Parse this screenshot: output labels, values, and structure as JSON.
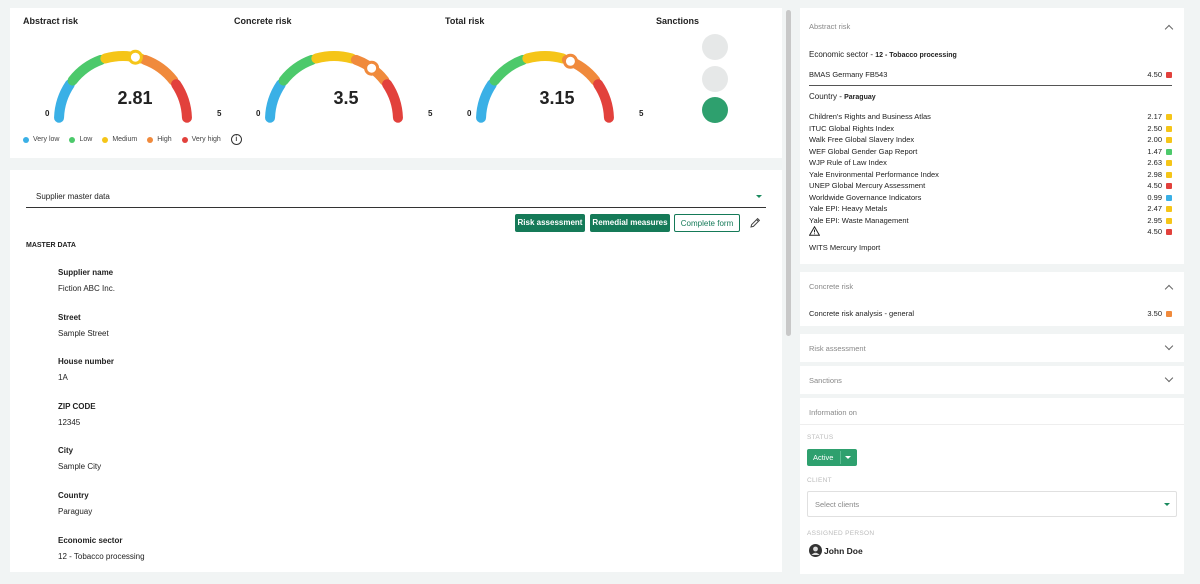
{
  "colors": {
    "very_low": "#3ab0e6",
    "low": "#4cc96b",
    "medium": "#f5c518",
    "high": "#f08a3c",
    "very_high": "#e2413c",
    "primary": "#157a58",
    "status_green": "#2ea06e"
  },
  "gauges": [
    {
      "title": "Abstract risk",
      "value": "2.81",
      "min": "0",
      "max": "5",
      "level": 2.81
    },
    {
      "title": "Concrete risk",
      "value": "3.5",
      "min": "0",
      "max": "5",
      "level": 3.5
    },
    {
      "title": "Total risk",
      "value": "3.15",
      "min": "0",
      "max": "5",
      "level": 3.15
    }
  ],
  "legend": [
    {
      "label": "Very low",
      "color": "#3ab0e6"
    },
    {
      "label": "Low",
      "color": "#4cc96b"
    },
    {
      "label": "Medium",
      "color": "#f5c518"
    },
    {
      "label": "High",
      "color": "#f08a3c"
    },
    {
      "label": "Very high",
      "color": "#e2413c"
    }
  ],
  "sanctions": {
    "title": "Sanctions",
    "active_light": "green"
  },
  "main": {
    "select_value": "Supplier master data",
    "buttons": {
      "risk": "Risk assessment",
      "remedial": "Remedial measures",
      "complete": "Complete form"
    },
    "master_heading": "MASTER DATA",
    "fields": [
      {
        "label": "Supplier name",
        "value": "Fiction ABC Inc."
      },
      {
        "label": "Street",
        "value": "Sample Street"
      },
      {
        "label": "House number",
        "value": "1A"
      },
      {
        "label": "ZIP CODE",
        "value": "12345"
      },
      {
        "label": "City",
        "value": "Sample City"
      },
      {
        "label": "Country",
        "value": "Paraguay"
      },
      {
        "label": "Economic sector",
        "value": "12 - Tobacco processing"
      }
    ]
  },
  "abstract_panel": {
    "heading": "Abstract risk",
    "sector_label": "Economic sector - ",
    "sector_value": "12 - Tobacco processing",
    "sector_rows": [
      {
        "name": "BMAS Germany FB543",
        "score": "4.50",
        "color": "#e2413c"
      }
    ],
    "country_label": "Country - ",
    "country_value": "Paraguay",
    "country_rows": [
      {
        "name": "Children's Rights and Business Atlas",
        "score": "2.17",
        "color": "#f5c518"
      },
      {
        "name": "ITUC Global Rights Index",
        "score": "2.50",
        "color": "#f5c518"
      },
      {
        "name": "Walk Free Global Slavery Index",
        "score": "2.00",
        "color": "#f5c518"
      },
      {
        "name": "WEF Global Gender Gap Report",
        "score": "1.47",
        "color": "#4cc96b"
      },
      {
        "name": "WJP Rule of Law Index",
        "score": "2.63",
        "color": "#f5c518"
      },
      {
        "name": "Yale Environmental Performance Index",
        "score": "2.98",
        "color": "#f5c518"
      },
      {
        "name": "UNEP Global Mercury Assessment",
        "score": "4.50",
        "color": "#e2413c"
      },
      {
        "name": "Worldwide Governance Indicators",
        "score": "0.99",
        "color": "#3ab0e6"
      },
      {
        "name": "Yale EPI: Heavy Metals",
        "score": "2.47",
        "color": "#f5c518"
      },
      {
        "name": "Yale EPI: Waste Management",
        "score": "2.95",
        "color": "#f5c518"
      },
      {
        "name": "",
        "score": "4.50",
        "color": "#e2413c",
        "warning": true
      }
    ],
    "footer_row": "WITS Mercury Import"
  },
  "concrete_panel": {
    "heading": "Concrete risk",
    "rows": [
      {
        "name": "Concrete risk analysis - general",
        "score": "3.50",
        "color": "#f08a3c"
      }
    ]
  },
  "collapsed_panels": [
    "Risk assessment",
    "Sanctions"
  ],
  "info_panel": {
    "heading": "Information on",
    "status_label": "STATUS",
    "status_value": "Active",
    "client_label": "CLIENT",
    "client_placeholder": "Select clients",
    "assigned_label": "ASSIGNED PERSON",
    "assigned_name": "John Doe"
  }
}
